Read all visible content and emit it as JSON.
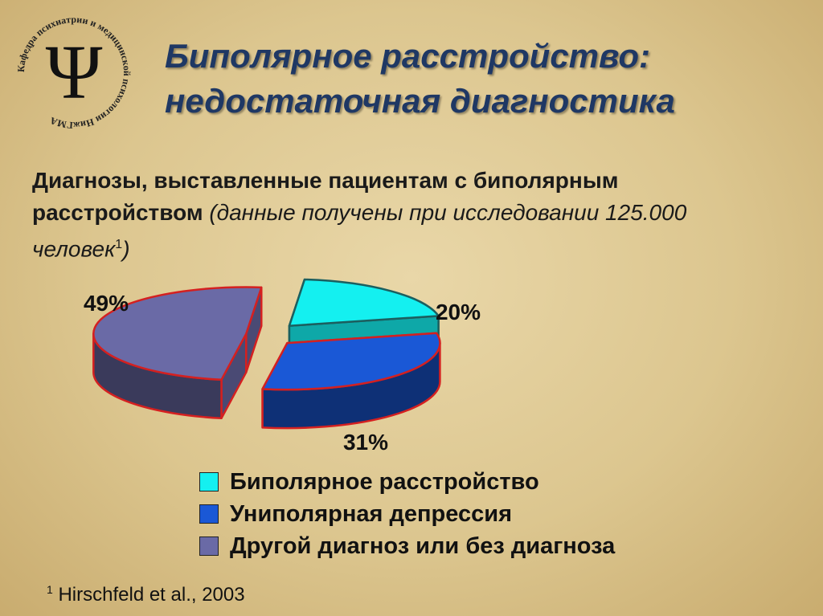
{
  "header": {
    "title_line1": "Биполярное расстройство:",
    "title_line2": "недостаточная диагностика"
  },
  "logo": {
    "symbol": "Ψ",
    "ring_text": "Кафедра психиатрии и медицинской психологии НижГМА"
  },
  "intro": {
    "bold_part": "Диагнозы, выставленные пациентам с биполярным расстройством",
    "note_part": "(данные получены при исследовании 125.000 человек",
    "footnote_mark": "1",
    "note_close": ")"
  },
  "chart_data": {
    "type": "pie",
    "categories": [
      "Биполярное расстройство",
      "Униполярная депрессия",
      "Другой диагноз или без диагноза"
    ],
    "values": [
      20,
      31,
      49
    ],
    "data_labels": [
      "20%",
      "31%",
      "49%"
    ],
    "colors": [
      "#14f0f0",
      "#1a58d6",
      "#6a6aa6"
    ],
    "legend_position": "bottom"
  },
  "footnote": {
    "mark": "1",
    "text": "Hirschfeld et al., 2003"
  }
}
